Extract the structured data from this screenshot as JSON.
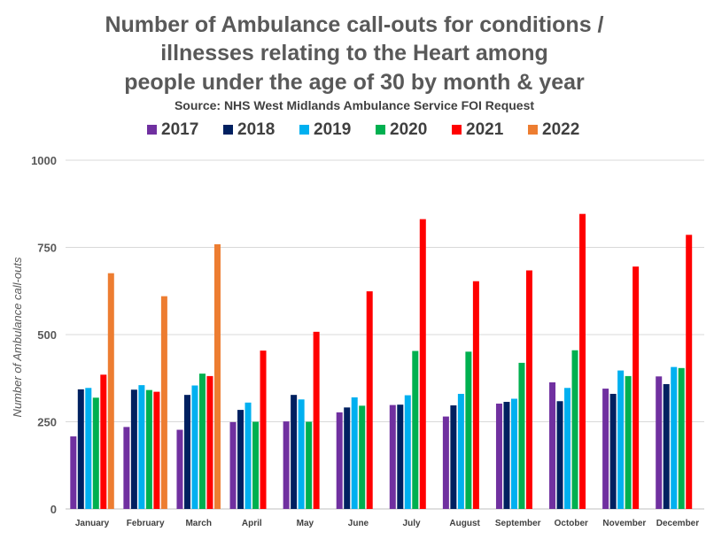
{
  "chart_data": {
    "type": "bar",
    "title_lines": [
      "Number of Ambulance call-outs for conditions /",
      "illnesses relating to the Heart among",
      "people under the age of 30 by month & year"
    ],
    "subtitle": "Source: NHS West Midlands Ambulance Service FOI Request",
    "ylabel": "Number of Ambulance call-outs",
    "xlabel": "",
    "ylim": [
      0,
      1000
    ],
    "yticks": [
      0,
      250,
      500,
      750,
      1000
    ],
    "grid": true,
    "legend_position": "top",
    "categories": [
      "January",
      "February",
      "March",
      "April",
      "May",
      "June",
      "July",
      "August",
      "September",
      "October",
      "November",
      "December"
    ],
    "series": [
      {
        "name": "2017",
        "color": "#7030a0",
        "values": [
          208,
          235,
          227,
          249,
          251,
          277,
          298,
          265,
          302,
          363,
          345,
          380
        ]
      },
      {
        "name": "2018",
        "color": "#002060",
        "values": [
          343,
          342,
          327,
          284,
          327,
          291,
          299,
          297,
          307,
          309,
          330,
          358
        ]
      },
      {
        "name": "2019",
        "color": "#00b0f0",
        "values": [
          347,
          355,
          354,
          305,
          314,
          320,
          326,
          330,
          316,
          347,
          397,
          407
        ]
      },
      {
        "name": "2020",
        "color": "#00b050",
        "values": [
          319,
          341,
          388,
          250,
          250,
          296,
          453,
          451,
          419,
          455,
          381,
          404
        ]
      },
      {
        "name": "2021",
        "color": "#ff0000",
        "values": [
          385,
          336,
          381,
          454,
          508,
          624,
          831,
          653,
          684,
          846,
          695,
          786
        ]
      },
      {
        "name": "2022",
        "color": "#ed7d31",
        "values": [
          676,
          610,
          759,
          null,
          null,
          null,
          null,
          null,
          null,
          null,
          null,
          null
        ]
      }
    ]
  }
}
